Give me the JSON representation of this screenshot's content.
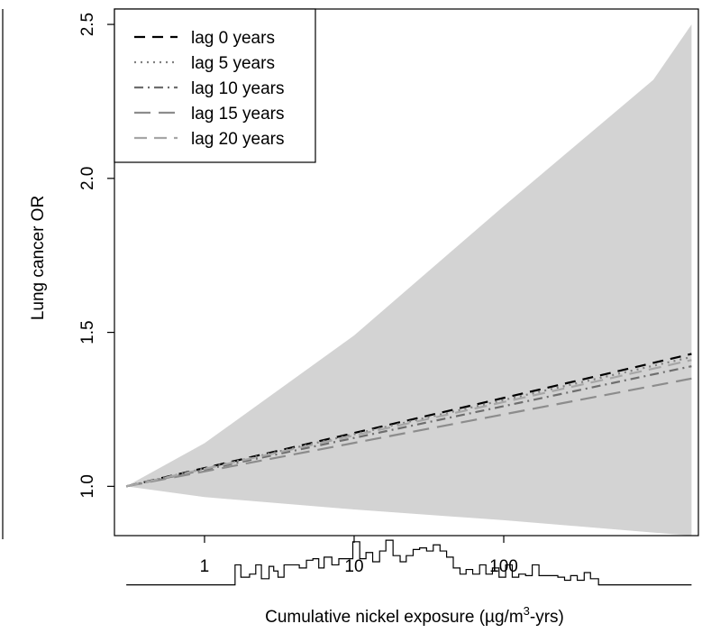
{
  "chart_data": {
    "type": "line",
    "xlabel_main": "Cumulative nickel exposure (µg/m",
    "xlabel_sup": "3",
    "xlabel_tail": "-yrs)",
    "ylabel": "Lung cancer OR",
    "x_scale": "log",
    "xlim": [
      0.25,
      2000
    ],
    "ylim": [
      0.84,
      2.55
    ],
    "x_ticks": [
      {
        "value": 1,
        "label": "1"
      },
      {
        "value": 10,
        "label": "10"
      },
      {
        "value": 100,
        "label": "100"
      }
    ],
    "y_ticks": [
      {
        "value": 1.0,
        "label": "1.0"
      },
      {
        "value": 1.5,
        "label": "1.5"
      },
      {
        "value": 2.0,
        "label": "2.0"
      },
      {
        "value": 2.5,
        "label": "2.5"
      }
    ],
    "legend_position": "top-left",
    "confidence_band": {
      "color": "#d3d3d3",
      "x": [
        0.3,
        1,
        10,
        100,
        1000,
        1800
      ],
      "upper": [
        1.0,
        1.14,
        1.49,
        1.91,
        2.32,
        2.5
      ],
      "lower": [
        1.0,
        0.965,
        0.925,
        0.89,
        0.85,
        0.84
      ]
    },
    "series": [
      {
        "name": "lag 0 years",
        "color": "#000000",
        "dash": "12,8",
        "width": 2.2,
        "x": [
          0.3,
          1800
        ],
        "y": [
          1.0,
          1.43
        ]
      },
      {
        "name": "lag 5 years",
        "color": "#808080",
        "dash": "2,5",
        "width": 2.2,
        "x": [
          0.3,
          1800
        ],
        "y": [
          1.0,
          1.42
        ]
      },
      {
        "name": "lag 10 years",
        "color": "#6e6e6e",
        "dash": "10,5,2,5",
        "width": 2.2,
        "x": [
          0.3,
          1800
        ],
        "y": [
          1.0,
          1.39
        ]
      },
      {
        "name": "lag 15 years",
        "color": "#8c8c8c",
        "dash": "18,9",
        "width": 2.2,
        "x": [
          0.3,
          1800
        ],
        "y": [
          1.0,
          1.35
        ]
      },
      {
        "name": "lag 20 years",
        "color": "#a6a6a6",
        "dash": "14,8",
        "width": 2.2,
        "x": [
          0.3,
          1800
        ],
        "y": [
          1.0,
          1.41
        ]
      }
    ],
    "exposure_histogram": {
      "baseline": 0.68,
      "x_start": 0.3,
      "x_end": 1800,
      "steps": [
        [
          1.6,
          0.745
        ],
        [
          1.75,
          0.705
        ],
        [
          2.0,
          0.715
        ],
        [
          2.2,
          0.745
        ],
        [
          2.4,
          0.7
        ],
        [
          2.7,
          0.74
        ],
        [
          2.9,
          0.725
        ],
        [
          3.1,
          0.705
        ],
        [
          3.4,
          0.745
        ],
        [
          3.9,
          0.745
        ],
        [
          4.3,
          0.735
        ],
        [
          4.8,
          0.76
        ],
        [
          5.3,
          0.765
        ],
        [
          5.8,
          0.735
        ],
        [
          6.3,
          0.77
        ],
        [
          7.1,
          0.745
        ],
        [
          7.9,
          0.765
        ],
        [
          8.8,
          0.765
        ],
        [
          9.8,
          0.82
        ],
        [
          10.9,
          0.765
        ],
        [
          12,
          0.785
        ],
        [
          13.3,
          0.755
        ],
        [
          14.8,
          0.79
        ],
        [
          16.3,
          0.825
        ],
        [
          18.2,
          0.775
        ],
        [
          20.3,
          0.755
        ],
        [
          22.3,
          0.775
        ],
        [
          24.8,
          0.795
        ],
        [
          27.4,
          0.8
        ],
        [
          30.5,
          0.79
        ],
        [
          33.8,
          0.81
        ],
        [
          37.5,
          0.79
        ],
        [
          41.5,
          0.77
        ],
        [
          46,
          0.735
        ],
        [
          51,
          0.715
        ],
        [
          56,
          0.73
        ],
        [
          62,
          0.715
        ],
        [
          69,
          0.745
        ],
        [
          76,
          0.715
        ],
        [
          84,
          0.735
        ],
        [
          93,
          0.705
        ],
        [
          103,
          0.745
        ],
        [
          114,
          0.705
        ],
        [
          126,
          0.715
        ],
        [
          140,
          0.71
        ],
        [
          155,
          0.745
        ],
        [
          172,
          0.71
        ],
        [
          200,
          0.71
        ],
        [
          230,
          0.705
        ],
        [
          255,
          0.695
        ],
        [
          280,
          0.71
        ],
        [
          310,
          0.695
        ],
        [
          345,
          0.72
        ],
        [
          380,
          0.7
        ],
        [
          430,
          0.68
        ]
      ]
    }
  }
}
